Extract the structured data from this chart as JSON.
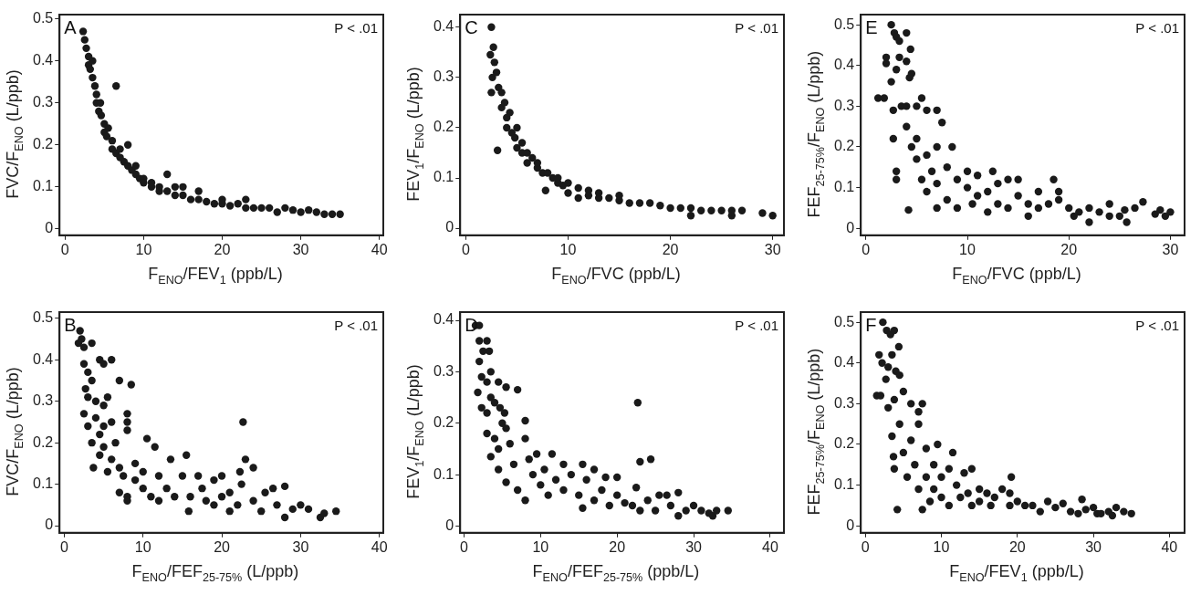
{
  "chart_data": [
    {
      "type": "scatter",
      "xlabel": "F$_{ENO}$/FEV$_{1}$ (ppb/L)",
      "ylabel": "FVC/F$_{ENO}$ (L/ppb)",
      "annotations": [
        "A",
        "P < .01"
      ],
      "xlim": [
        -0.7,
        40.5
      ],
      "ylim": [
        -0.015,
        0.51
      ],
      "xticks": [
        0,
        10,
        20,
        30,
        40
      ],
      "yticks": [
        0,
        0.1,
        0.2,
        0.3,
        0.4,
        0.5
      ],
      "marker": "circle",
      "grid": false,
      "legend": false,
      "series": [
        {
          "color": "#1a1a1a",
          "x": [
            2.3,
            2.5,
            2.7,
            3,
            3,
            3.2,
            3.5,
            3.5,
            3.8,
            4,
            4,
            4.3,
            4.5,
            4.6,
            5,
            5,
            5.3,
            5.5,
            6,
            6,
            6.5,
            6.5,
            7,
            7,
            7.5,
            8,
            8,
            8.5,
            9,
            9,
            9.5,
            10,
            10,
            11,
            11,
            12,
            12,
            13,
            13,
            14,
            14,
            15,
            15,
            16,
            17,
            17,
            18,
            19,
            20,
            20,
            21,
            22,
            23,
            23,
            24,
            25,
            26,
            27,
            28,
            29,
            30,
            31,
            32,
            33,
            34,
            35
          ],
          "values": [
            0.47,
            0.45,
            0.43,
            0.41,
            0.39,
            0.38,
            0.4,
            0.36,
            0.34,
            0.32,
            0.3,
            0.28,
            0.3,
            0.27,
            0.25,
            0.23,
            0.22,
            0.24,
            0.21,
            0.19,
            0.34,
            0.18,
            0.17,
            0.19,
            0.16,
            0.15,
            0.2,
            0.14,
            0.13,
            0.15,
            0.12,
            0.12,
            0.11,
            0.11,
            0.1,
            0.1,
            0.09,
            0.13,
            0.09,
            0.08,
            0.1,
            0.08,
            0.1,
            0.07,
            0.09,
            0.07,
            0.065,
            0.06,
            0.06,
            0.07,
            0.055,
            0.06,
            0.07,
            0.05,
            0.05,
            0.05,
            0.05,
            0.04,
            0.05,
            0.045,
            0.04,
            0.045,
            0.04,
            0.035,
            0.035,
            0.035
          ]
        }
      ]
    },
    {
      "type": "scatter",
      "xlabel": "F$_{ENO}$/FVC (ppb/L)",
      "ylabel": "FEV$_{1}$/F$_{ENO}$ (L/ppb)",
      "annotations": [
        "C",
        "P < .01"
      ],
      "xlim": [
        -0.55,
        31.1
      ],
      "ylim": [
        -0.014,
        0.425
      ],
      "xticks": [
        0,
        10,
        20,
        30
      ],
      "yticks": [
        0,
        0.1,
        0.2,
        0.3,
        0.4
      ],
      "marker": "circle",
      "grid": false,
      "legend": false,
      "series": [
        {
          "color": "#1a1a1a",
          "x": [
            2.5,
            2.4,
            2.7,
            2.8,
            2.6,
            3,
            2.5,
            3.2,
            3.1,
            3.5,
            3.5,
            3.8,
            4,
            4,
            4.3,
            4.5,
            4.8,
            5,
            5,
            5.5,
            5.5,
            6,
            6,
            6.5,
            7,
            7,
            7.5,
            7.8,
            8,
            8.5,
            9,
            9,
            9.5,
            10,
            10,
            11,
            11,
            12,
            12,
            13,
            13,
            14,
            15,
            15,
            16,
            17,
            18,
            19,
            20,
            21,
            22,
            22,
            23,
            24,
            25,
            26,
            26,
            27,
            29,
            30
          ],
          "values": [
            0.4,
            0.345,
            0.36,
            0.33,
            0.3,
            0.31,
            0.27,
            0.28,
            0.155,
            0.27,
            0.24,
            0.25,
            0.22,
            0.2,
            0.23,
            0.19,
            0.18,
            0.2,
            0.16,
            0.17,
            0.15,
            0.15,
            0.13,
            0.14,
            0.12,
            0.13,
            0.11,
            0.075,
            0.11,
            0.1,
            0.09,
            0.1,
            0.085,
            0.09,
            0.07,
            0.08,
            0.06,
            0.075,
            0.065,
            0.07,
            0.06,
            0.06,
            0.055,
            0.065,
            0.05,
            0.05,
            0.05,
            0.045,
            0.04,
            0.04,
            0.025,
            0.04,
            0.035,
            0.035,
            0.035,
            0.025,
            0.035,
            0.035,
            0.03,
            0.025
          ]
        }
      ]
    },
    {
      "type": "scatter",
      "xlabel": "F$_{ENO}$/FVC (ppb/L)",
      "ylabel": "FEF$_{25-75%}$/F$_{ENO}$ (L/ppb)",
      "annotations": [
        "E",
        "P < .01"
      ],
      "xlim": [
        -0.5,
        31.4
      ],
      "ylim": [
        -0.017,
        0.525
      ],
      "xticks": [
        0,
        10,
        20,
        30
      ],
      "yticks": [
        0,
        0.1,
        0.2,
        0.3,
        0.4,
        0.5
      ],
      "marker": "circle",
      "grid": false,
      "legend": false,
      "series": [
        {
          "color": "#1a1a1a",
          "x": [
            2.5,
            2.8,
            3,
            3.3,
            4,
            4.4,
            1.2,
            1.8,
            2,
            2,
            2.5,
            3,
            3.3,
            4,
            4.3,
            4.5,
            2.7,
            3.5,
            4,
            5,
            5.5,
            6,
            7,
            7.5,
            2.7,
            3,
            3,
            4.2,
            4,
            4.5,
            5,
            5,
            5.5,
            6,
            6,
            6.5,
            7,
            7,
            7,
            8,
            8,
            8.5,
            9,
            9,
            10,
            10,
            10.5,
            11,
            11,
            12,
            12,
            12.5,
            13,
            13,
            14,
            14,
            15,
            15,
            16,
            16,
            17,
            17,
            18,
            18.5,
            19,
            19,
            20,
            20.5,
            21,
            22,
            22,
            23,
            24,
            24,
            25,
            25.5,
            25.7,
            26.5,
            27.3,
            28.5,
            29,
            29.5,
            30
          ],
          "values": [
            0.5,
            0.48,
            0.47,
            0.46,
            0.48,
            0.44,
            0.32,
            0.32,
            0.42,
            0.405,
            0.36,
            0.39,
            0.42,
            0.41,
            0.37,
            0.38,
            0.29,
            0.3,
            0.3,
            0.3,
            0.32,
            0.29,
            0.29,
            0.26,
            0.22,
            0.14,
            0.12,
            0.045,
            0.25,
            0.2,
            0.22,
            0.17,
            0.12,
            0.18,
            0.09,
            0.14,
            0.2,
            0.11,
            0.05,
            0.15,
            0.07,
            0.2,
            0.12,
            0.05,
            0.1,
            0.14,
            0.06,
            0.13,
            0.08,
            0.09,
            0.04,
            0.14,
            0.11,
            0.06,
            0.12,
            0.05,
            0.08,
            0.12,
            0.06,
            0.03,
            0.09,
            0.05,
            0.06,
            0.12,
            0.07,
            0.09,
            0.05,
            0.03,
            0.04,
            0.015,
            0.05,
            0.04,
            0.06,
            0.03,
            0.03,
            0.045,
            0.015,
            0.05,
            0.065,
            0.035,
            0.045,
            0.03,
            0.04
          ]
        }
      ]
    },
    {
      "type": "scatter",
      "xlabel": "F$_{ENO}$/FEF$_{25-75%}$ (L/ppb)",
      "ylabel": "FVC/F$_{ENO}$ (L/ppb)",
      "annotations": [
        "B",
        "P < .01"
      ],
      "xlim": [
        -0.6,
        40.5
      ],
      "ylim": [
        -0.017,
        0.515
      ],
      "xticks": [
        0,
        10,
        20,
        30,
        40
      ],
      "yticks": [
        0,
        0.1,
        0.2,
        0.3,
        0.4,
        0.5
      ],
      "marker": "circle",
      "grid": false,
      "legend": false,
      "series": [
        {
          "color": "#1a1a1a",
          "x": [
            2,
            2.2,
            1.8,
            2.5,
            3.5,
            4.5,
            5,
            6,
            2.5,
            3,
            3.5,
            2.7,
            7,
            8.5,
            3,
            4,
            5,
            5.5,
            2.5,
            3,
            4,
            4.5,
            5,
            6,
            8,
            8,
            8,
            3.5,
            3.7,
            4.5,
            5,
            5.5,
            6,
            6.5,
            7,
            7.5,
            7,
            8,
            8,
            9,
            9,
            10,
            10,
            10.5,
            11,
            11.5,
            12,
            12,
            13,
            13.5,
            14,
            15,
            15.5,
            15.8,
            16,
            17,
            17.5,
            18,
            19,
            19,
            20,
            20,
            21,
            21,
            22,
            22.3,
            22.7,
            23,
            22.5,
            24,
            24,
            25,
            25.5,
            26.5,
            27,
            28,
            28,
            29,
            30,
            31,
            32.5,
            33,
            34.5
          ],
          "values": [
            0.47,
            0.45,
            0.44,
            0.43,
            0.44,
            0.4,
            0.39,
            0.4,
            0.39,
            0.37,
            0.35,
            0.33,
            0.35,
            0.34,
            0.31,
            0.3,
            0.29,
            0.31,
            0.27,
            0.24,
            0.26,
            0.22,
            0.24,
            0.25,
            0.27,
            0.25,
            0.23,
            0.2,
            0.14,
            0.17,
            0.19,
            0.13,
            0.16,
            0.2,
            0.14,
            0.12,
            0.08,
            0.07,
            0.06,
            0.15,
            0.11,
            0.13,
            0.09,
            0.21,
            0.07,
            0.19,
            0.12,
            0.06,
            0.09,
            0.16,
            0.07,
            0.12,
            0.17,
            0.035,
            0.07,
            0.12,
            0.09,
            0.06,
            0.11,
            0.05,
            0.12,
            0.07,
            0.035,
            0.08,
            0.05,
            0.13,
            0.25,
            0.16,
            0.1,
            0.14,
            0.06,
            0.035,
            0.08,
            0.09,
            0.05,
            0.095,
            0.02,
            0.04,
            0.05,
            0.04,
            0.02,
            0.03,
            0.035
          ]
        }
      ]
    },
    {
      "type": "scatter",
      "xlabel": "F$_{ENO}$/FEF$_{25-75%}$ (ppb/L)",
      "ylabel": "FEV$_{1}$/F$_{ENO}$ (L/ppb)",
      "annotations": [
        "D",
        "P < .01"
      ],
      "xlim": [
        -0.5,
        41.8
      ],
      "ylim": [
        -0.013,
        0.416
      ],
      "xticks": [
        0,
        10,
        20,
        30,
        40
      ],
      "yticks": [
        0,
        0.1,
        0.2,
        0.3,
        0.4
      ],
      "marker": "circle",
      "grid": false,
      "legend": false,
      "series": [
        {
          "color": "#1a1a1a",
          "x": [
            1.5,
            2,
            2,
            2.5,
            3,
            3.3,
            2,
            2.3,
            1.8,
            3,
            3.5,
            4.5,
            5.5,
            7,
            2.3,
            3,
            3.5,
            4,
            4.7,
            5.3,
            3,
            3.5,
            4,
            4.5,
            5,
            5.5,
            6,
            4.5,
            5.5,
            6.5,
            7,
            8,
            8,
            8,
            8.5,
            9,
            9.5,
            10,
            10.5,
            11,
            11.5,
            12,
            13,
            13,
            14,
            15,
            15.5,
            15.5,
            16,
            17,
            17,
            18,
            18.5,
            19,
            20,
            20,
            21,
            22,
            22.5,
            22.7,
            23,
            23,
            24,
            24.4,
            25,
            25.5,
            26.5,
            27,
            28,
            28,
            29,
            30,
            31,
            32,
            32.5,
            33,
            34.5
          ],
          "values": [
            0.39,
            0.39,
            0.36,
            0.34,
            0.36,
            0.34,
            0.32,
            0.29,
            0.26,
            0.28,
            0.3,
            0.28,
            0.27,
            0.265,
            0.23,
            0.22,
            0.25,
            0.24,
            0.23,
            0.22,
            0.18,
            0.135,
            0.17,
            0.15,
            0.2,
            0.19,
            0.16,
            0.11,
            0.085,
            0.12,
            0.07,
            0.205,
            0.17,
            0.05,
            0.13,
            0.1,
            0.14,
            0.08,
            0.11,
            0.06,
            0.14,
            0.09,
            0.12,
            0.07,
            0.1,
            0.06,
            0.12,
            0.035,
            0.09,
            0.11,
            0.05,
            0.07,
            0.095,
            0.04,
            0.095,
            0.06,
            0.045,
            0.04,
            0.075,
            0.24,
            0.125,
            0.03,
            0.05,
            0.13,
            0.03,
            0.06,
            0.06,
            0.04,
            0.065,
            0.02,
            0.03,
            0.04,
            0.03,
            0.025,
            0.02,
            0.03,
            0.03
          ]
        }
      ]
    },
    {
      "type": "scatter",
      "xlabel": "F$_{ENO}$/FEV$_{1}$ (ppb/L)",
      "ylabel": "FEF$_{25-75%}$/F$_{ENO}$ (L/ppb)",
      "annotations": [
        "F",
        "P < .01"
      ],
      "xlim": [
        -0.6,
        42
      ],
      "ylim": [
        -0.017,
        0.525
      ],
      "xticks": [
        0,
        10,
        20,
        30,
        40
      ],
      "yticks": [
        0,
        0.1,
        0.2,
        0.3,
        0.4,
        0.5
      ],
      "marker": "circle",
      "grid": false,
      "legend": false,
      "series": [
        {
          "color": "#1a1a1a",
          "x": [
            2.3,
            2.8,
            3.3,
            3.8,
            4.4,
            1.5,
            2,
            1.8,
            2.2,
            2.7,
            3,
            3.5,
            4,
            4.5,
            3,
            3.8,
            5,
            6,
            7,
            7.5,
            3.5,
            3.7,
            3.8,
            4.2,
            4.5,
            5,
            5.5,
            6,
            6.5,
            7,
            7,
            7.5,
            8,
            8,
            8.5,
            9,
            9,
            9.5,
            10,
            10,
            11,
            11,
            11.5,
            12,
            12.5,
            13,
            13.5,
            14,
            14,
            15,
            15,
            16,
            16.5,
            17,
            18,
            19,
            19.2,
            19,
            20,
            21,
            22,
            23,
            24,
            25,
            26,
            27,
            28,
            28.5,
            29,
            30,
            30.5,
            31,
            32,
            32.5,
            33,
            34,
            35
          ],
          "values": [
            0.5,
            0.48,
            0.47,
            0.48,
            0.44,
            0.32,
            0.32,
            0.42,
            0.4,
            0.36,
            0.39,
            0.42,
            0.38,
            0.37,
            0.29,
            0.31,
            0.33,
            0.3,
            0.28,
            0.3,
            0.22,
            0.17,
            0.14,
            0.04,
            0.25,
            0.18,
            0.12,
            0.21,
            0.15,
            0.25,
            0.09,
            0.04,
            0.19,
            0.12,
            0.06,
            0.15,
            0.09,
            0.2,
            0.12,
            0.07,
            0.14,
            0.05,
            0.18,
            0.1,
            0.07,
            0.13,
            0.08,
            0.14,
            0.05,
            0.09,
            0.06,
            0.08,
            0.05,
            0.07,
            0.09,
            0.08,
            0.12,
            0.05,
            0.06,
            0.05,
            0.05,
            0.035,
            0.06,
            0.045,
            0.055,
            0.035,
            0.03,
            0.065,
            0.04,
            0.045,
            0.03,
            0.03,
            0.035,
            0.025,
            0.045,
            0.035,
            0.03
          ]
        }
      ]
    }
  ]
}
